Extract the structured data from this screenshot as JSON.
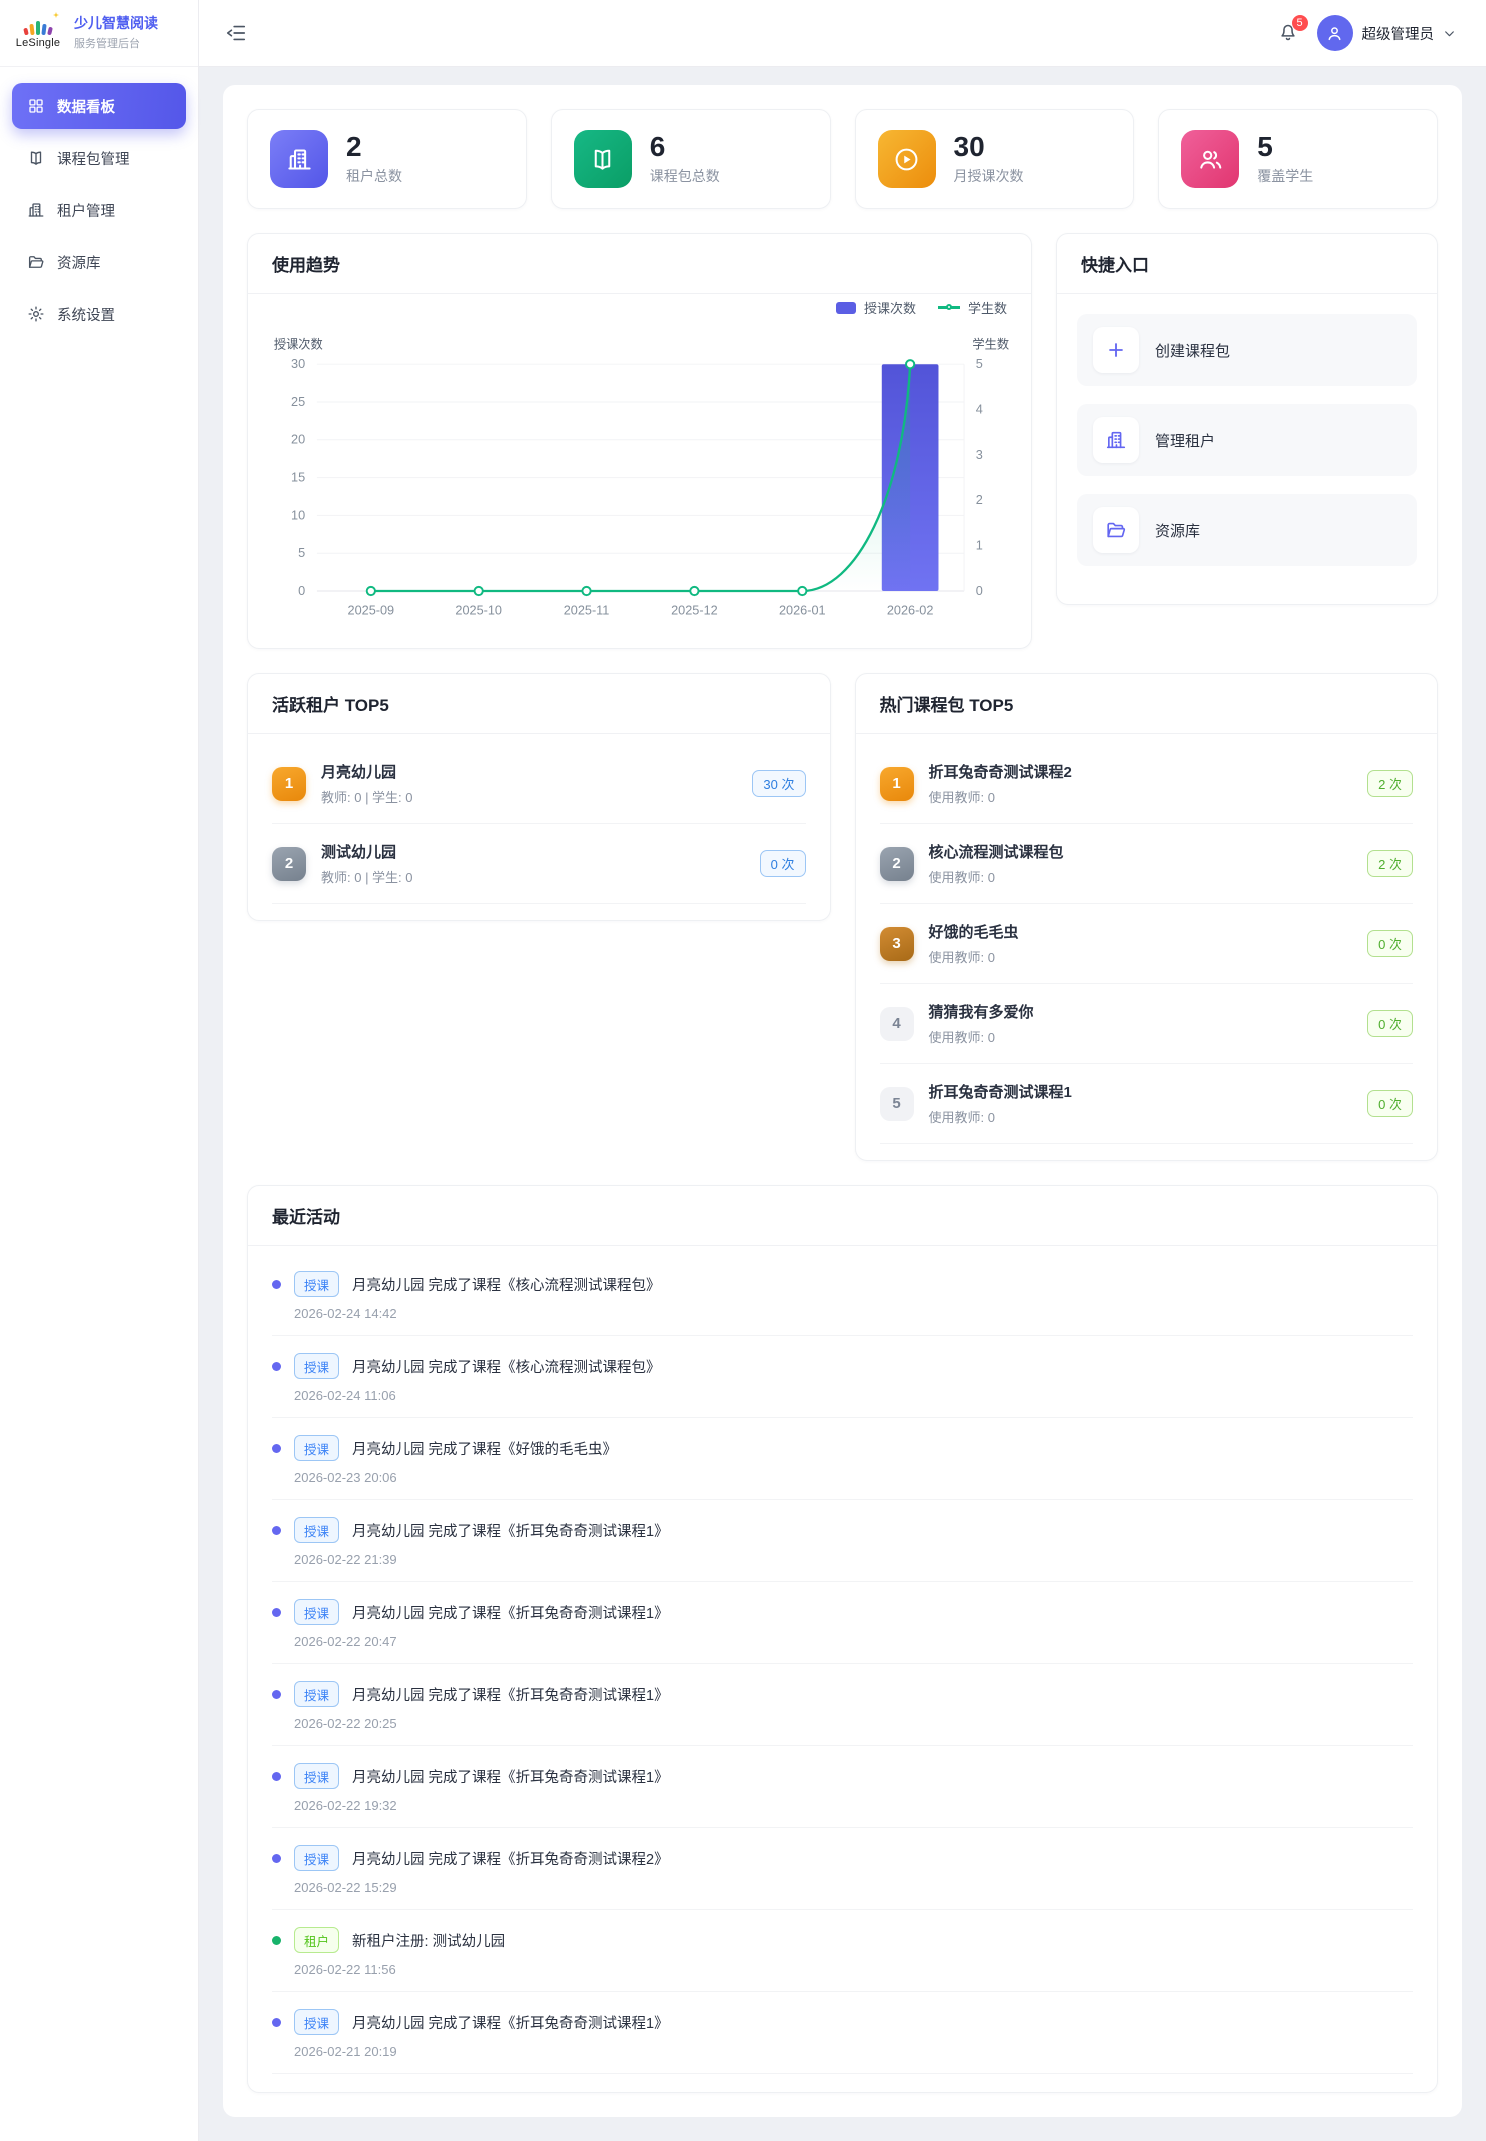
{
  "brand": {
    "logo_text": "LeSingle",
    "title": "少儿智慧阅读",
    "subtitle": "服务管理后台"
  },
  "sidebar": {
    "items": [
      {
        "label": "数据看板",
        "icon": "dashboard-icon",
        "state": "active"
      },
      {
        "label": "课程包管理",
        "icon": "book-icon",
        "state": ""
      },
      {
        "label": "租户管理",
        "icon": "building-icon",
        "state": ""
      },
      {
        "label": "资源库",
        "icon": "folder-icon",
        "state": ""
      },
      {
        "label": "系统设置",
        "icon": "gear-icon",
        "state": ""
      }
    ]
  },
  "header": {
    "notification_count": "5",
    "username": "超级管理员"
  },
  "colors": {
    "accent": "#5457e9",
    "bar": "#5b5ee4",
    "line": "#10b981",
    "stat_purple": "#5356e8",
    "stat_green": "#0a9e66",
    "stat_orange": "#ec8d0c",
    "stat_pink": "#e13670",
    "badge_red": "#ff4d4f",
    "tag_blue": "#3b82f6",
    "tag_green": "#52c41a"
  },
  "stats": [
    {
      "value": "2",
      "label": "租户总数",
      "icon": "building-icon",
      "icon_class": "grad-purple"
    },
    {
      "value": "6",
      "label": "课程包总数",
      "icon": "book-open-icon",
      "icon_class": "grad-green"
    },
    {
      "value": "30",
      "label": "月授课次数",
      "icon": "play-circle-icon",
      "icon_class": "grad-orange"
    },
    {
      "value": "5",
      "label": "覆盖学生",
      "icon": "users-icon",
      "icon_class": "grad-pink"
    }
  ],
  "usage_trend": {
    "title": "使用趋势"
  },
  "chart_data": {
    "type": "bar",
    "categories": [
      "2025-09",
      "2025-10",
      "2025-11",
      "2025-12",
      "2026-01",
      "2026-02"
    ],
    "series": [
      {
        "name": "授课次数",
        "type": "bar",
        "axis": "left",
        "values": [
          0,
          0,
          0,
          0,
          0,
          30
        ],
        "color": "#5b5ee4"
      },
      {
        "name": "学生数",
        "type": "line",
        "axis": "right",
        "values": [
          0,
          0,
          0,
          0,
          0,
          5
        ],
        "color": "#10b981"
      }
    ],
    "left_axis": {
      "label": "授课次数",
      "ticks": [
        0,
        5,
        10,
        15,
        20,
        25,
        30
      ],
      "max": 30
    },
    "right_axis": {
      "label": "学生数",
      "ticks": [
        0,
        1,
        2,
        3,
        4,
        5
      ],
      "max": 5
    },
    "grid": true,
    "legend_position": "top-right"
  },
  "quick_entry": {
    "title": "快捷入口",
    "items": [
      {
        "label": "创建课程包",
        "icon": "plus-icon"
      },
      {
        "label": "管理租户",
        "icon": "building-icon"
      },
      {
        "label": "资源库",
        "icon": "folder-icon"
      }
    ]
  },
  "active_tenants": {
    "title": "活跃租户 TOP5",
    "items": [
      {
        "rank": "1",
        "rank_class": "gold",
        "name": "月亮幼儿园",
        "meta": "教师: 0 | 学生: 0",
        "count": "30 次",
        "count_class": "blue"
      },
      {
        "rank": "2",
        "rank_class": "silver",
        "name": "测试幼儿园",
        "meta": "教师: 0 | 学生: 0",
        "count": "0 次",
        "count_class": "blue"
      }
    ]
  },
  "hot_packages": {
    "title": "热门课程包 TOP5",
    "items": [
      {
        "rank": "1",
        "rank_class": "gold",
        "name": "折耳兔奇奇测试课程2",
        "meta": "使用教师: 0",
        "count": "2 次",
        "count_class": "green"
      },
      {
        "rank": "2",
        "rank_class": "silver",
        "name": "核心流程测试课程包",
        "meta": "使用教师: 0",
        "count": "2 次",
        "count_class": "green"
      },
      {
        "rank": "3",
        "rank_class": "bronze",
        "name": "好饿的毛毛虫",
        "meta": "使用教师: 0",
        "count": "0 次",
        "count_class": "green"
      },
      {
        "rank": "4",
        "rank_class": "plain",
        "name": "猜猜我有多爱你",
        "meta": "使用教师: 0",
        "count": "0 次",
        "count_class": "green"
      },
      {
        "rank": "5",
        "rank_class": "plain",
        "name": "折耳兔奇奇测试课程1",
        "meta": "使用教师: 0",
        "count": "0 次",
        "count_class": "green"
      }
    ]
  },
  "recent_activity": {
    "title": "最近活动",
    "items": [
      {
        "type": "blue",
        "tag": "授课",
        "text": "月亮幼儿园 完成了课程《核心流程测试课程包》",
        "time": "2026-02-24 14:42"
      },
      {
        "type": "blue",
        "tag": "授课",
        "text": "月亮幼儿园 完成了课程《核心流程测试课程包》",
        "time": "2026-02-24 11:06"
      },
      {
        "type": "blue",
        "tag": "授课",
        "text": "月亮幼儿园 完成了课程《好饿的毛毛虫》",
        "time": "2026-02-23 20:06"
      },
      {
        "type": "blue",
        "tag": "授课",
        "text": "月亮幼儿园 完成了课程《折耳兔奇奇测试课程1》",
        "time": "2026-02-22 21:39"
      },
      {
        "type": "blue",
        "tag": "授课",
        "text": "月亮幼儿园 完成了课程《折耳兔奇奇测试课程1》",
        "time": "2026-02-22 20:47"
      },
      {
        "type": "blue",
        "tag": "授课",
        "text": "月亮幼儿园 完成了课程《折耳兔奇奇测试课程1》",
        "time": "2026-02-22 20:25"
      },
      {
        "type": "blue",
        "tag": "授课",
        "text": "月亮幼儿园 完成了课程《折耳兔奇奇测试课程1》",
        "time": "2026-02-22 19:32"
      },
      {
        "type": "blue",
        "tag": "授课",
        "text": "月亮幼儿园 完成了课程《折耳兔奇奇测试课程2》",
        "time": "2026-02-22 15:29"
      },
      {
        "type": "green",
        "tag": "租户",
        "text": "新租户注册: 测试幼儿园",
        "time": "2026-02-22 11:56"
      },
      {
        "type": "blue",
        "tag": "授课",
        "text": "月亮幼儿园 完成了课程《折耳兔奇奇测试课程1》",
        "time": "2026-02-21 20:19"
      }
    ]
  }
}
